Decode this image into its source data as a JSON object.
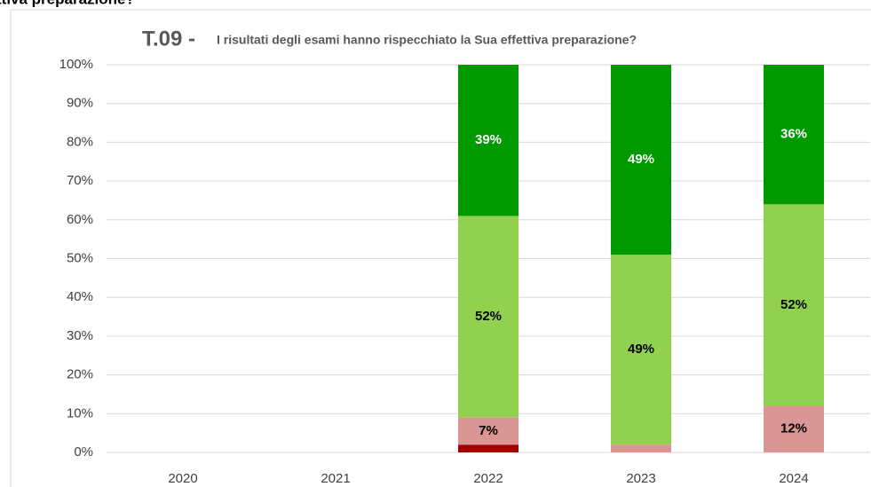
{
  "chart_data": {
    "type": "stacked_bar",
    "heading": "ttiva preparazione?",
    "title_code": "T.09 -",
    "title": "I risultati degli esami hanno rispecchiato la Sua effettiva preparazione?",
    "categories": [
      "2020",
      "2021",
      "2022",
      "2023",
      "2024"
    ],
    "series": [
      {
        "color": "#a50000",
        "label_color": "#000000",
        "values": [
          null,
          null,
          2,
          null,
          null
        ],
        "value_labels": [
          null,
          null,
          null,
          null,
          null
        ]
      },
      {
        "color": "#da9694",
        "label_color": "#000000",
        "values": [
          null,
          null,
          7,
          2,
          12
        ],
        "value_labels": [
          null,
          null,
          "7%",
          null,
          "12%"
        ]
      },
      {
        "color": "#92d050",
        "label_color": "#000000",
        "values": [
          null,
          null,
          52,
          49,
          52
        ],
        "value_labels": [
          null,
          null,
          "52%",
          "49%",
          "52%"
        ]
      },
      {
        "color": "#009900",
        "label_color": "#ffffff",
        "values": [
          null,
          null,
          39,
          49,
          36
        ],
        "value_labels": [
          null,
          null,
          "39%",
          "49%",
          "36%"
        ]
      }
    ],
    "ylim": [
      0,
      100
    ],
    "yticks": [
      {
        "value": 0,
        "label": "0%"
      },
      {
        "value": 10,
        "label": "10%"
      },
      {
        "value": 20,
        "label": "20%"
      },
      {
        "value": 30,
        "label": "30%"
      },
      {
        "value": 40,
        "label": "40%"
      },
      {
        "value": 50,
        "label": "50%"
      },
      {
        "value": 60,
        "label": "60%"
      },
      {
        "value": 70,
        "label": "70%"
      },
      {
        "value": 80,
        "label": "80%"
      },
      {
        "value": 90,
        "label": "90%"
      },
      {
        "value": 100,
        "label": "100%"
      }
    ],
    "grid": true
  }
}
